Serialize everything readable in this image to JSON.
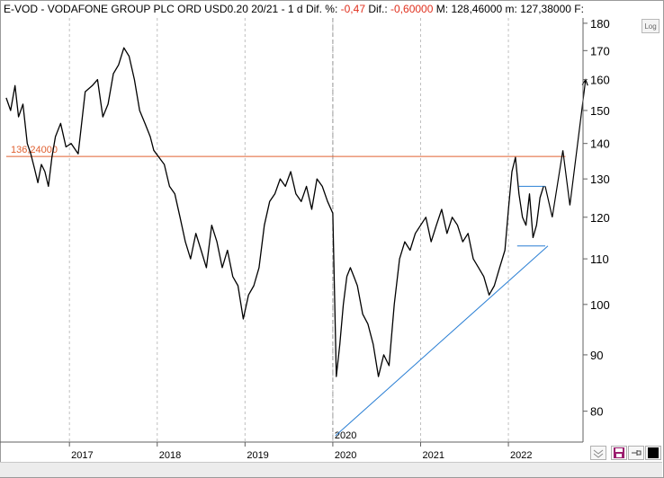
{
  "header": {
    "symbol": "E-VOD",
    "name": "VODAFONE GROUP PLC ORD USD0.20 20/21",
    "sep": "-",
    "interval": "1 d",
    "dif_pct_label": "Dif. %:",
    "dif_pct_value": "-0,47",
    "dif_label": "Dif.:",
    "dif_value": "-0,60000",
    "max_label": "M:",
    "max_value": "128,46000",
    "min_label": "m:",
    "min_value": "127,38000",
    "f_label": "F:"
  },
  "log_label": "Log",
  "colors": {
    "price": "#000000",
    "resistance": "#e06030",
    "support": "#2a7fd4",
    "grid": "#c0c0c0",
    "axis": "#606060"
  },
  "chart_data": {
    "type": "line",
    "y_scale": "log",
    "ylim": [
      75,
      182
    ],
    "xlim": [
      2016.25,
      2022.85
    ],
    "y_ticks": [
      80,
      90,
      100,
      110,
      120,
      130,
      140,
      150,
      160,
      170,
      180
    ],
    "x_ticks": [
      {
        "value": 2017,
        "label": "2017"
      },
      {
        "value": 2018,
        "label": "2018"
      },
      {
        "value": 2019,
        "label": "2019"
      },
      {
        "value": 2020,
        "label": "2020"
      },
      {
        "value": 2021,
        "label": "2021"
      },
      {
        "value": 2022,
        "label": "2022"
      }
    ],
    "series": [
      {
        "x": [
          2016.28,
          2016.33,
          2016.38,
          2016.42,
          2016.47,
          2016.52,
          2016.56,
          2016.6,
          2016.64,
          2016.68,
          2016.72,
          2016.76,
          2016.8,
          2016.84,
          2016.9,
          2016.96,
          2017.02,
          2017.1,
          2017.18,
          2017.26,
          2017.32,
          2017.38,
          2017.44,
          2017.5,
          2017.56,
          2017.62,
          2017.68,
          2017.74,
          2017.8,
          2017.86,
          2017.92,
          2017.96,
          2018.02,
          2018.08,
          2018.14,
          2018.2,
          2018.26,
          2018.32,
          2018.38,
          2018.44,
          2018.5,
          2018.56,
          2018.62,
          2018.68,
          2018.74,
          2018.8,
          2018.86,
          2018.92,
          2018.98,
          2019.04,
          2019.1,
          2019.16,
          2019.22,
          2019.28,
          2019.34,
          2019.4,
          2019.46,
          2019.52,
          2019.58,
          2019.64,
          2019.7,
          2019.76,
          2019.82,
          2019.88,
          2019.94,
          2020.0,
          2020.04,
          2020.08,
          2020.12,
          2020.16,
          2020.2,
          2020.24,
          2020.28,
          2020.34,
          2020.4,
          2020.46,
          2020.52,
          2020.58,
          2020.64,
          2020.7,
          2020.76,
          2020.82,
          2020.88,
          2020.94,
          2021.0,
          2021.06,
          2021.12,
          2021.18,
          2021.24,
          2021.3,
          2021.36,
          2021.42,
          2021.48,
          2021.54,
          2021.6,
          2021.66,
          2021.72,
          2021.78,
          2021.84,
          2021.9,
          2021.96,
          2022.0,
          2022.04,
          2022.08,
          2022.12,
          2022.16,
          2022.2,
          2022.24,
          2022.28,
          2022.32,
          2022.36,
          2022.4
        ],
        "y": [
          154,
          150,
          158,
          148,
          152,
          140,
          137,
          133,
          129,
          134,
          132,
          128,
          136,
          142,
          146,
          139,
          140,
          137,
          156,
          158,
          160,
          148,
          152,
          162,
          165,
          171,
          168,
          160,
          150,
          146,
          142,
          138,
          136,
          134,
          128,
          126,
          120,
          114,
          110,
          116,
          112,
          108,
          118,
          114,
          108,
          112,
          106,
          104,
          97,
          102,
          104,
          108,
          118,
          124,
          126,
          130,
          128,
          132,
          126,
          124,
          128,
          122,
          130,
          128,
          124,
          121,
          86,
          92,
          100,
          106,
          108,
          106,
          104,
          98,
          96,
          92,
          86,
          90,
          88,
          100,
          110,
          114,
          112,
          116,
          118,
          120,
          114,
          118,
          122,
          116,
          120,
          118,
          114,
          116,
          110,
          108,
          106,
          102,
          104,
          108,
          112,
          122,
          132,
          136,
          126,
          120,
          118,
          126,
          115,
          118,
          125,
          128
        ]
      }
    ],
    "annotations": {
      "resistance_label": "136,24000",
      "resistance_value": 136.24,
      "resistance_x": [
        2016.28,
        2022.65
      ],
      "support_line": {
        "x": [
          2020.03,
          2022.45
        ],
        "y": [
          76,
          113
        ]
      },
      "triangle_top": {
        "x": [
          2022.12,
          2022.42
        ],
        "y": [
          128,
          128
        ]
      },
      "triangle_bottom": {
        "x": [
          2022.1,
          2022.42
        ],
        "y": [
          113,
          113
        ]
      },
      "projection": {
        "x": [
          2022.42,
          2022.5,
          2022.62,
          2022.7,
          2022.88
        ],
        "y": [
          128,
          120,
          138,
          123,
          160
        ]
      },
      "event_x": 2020.0,
      "event_label": "2020"
    }
  }
}
